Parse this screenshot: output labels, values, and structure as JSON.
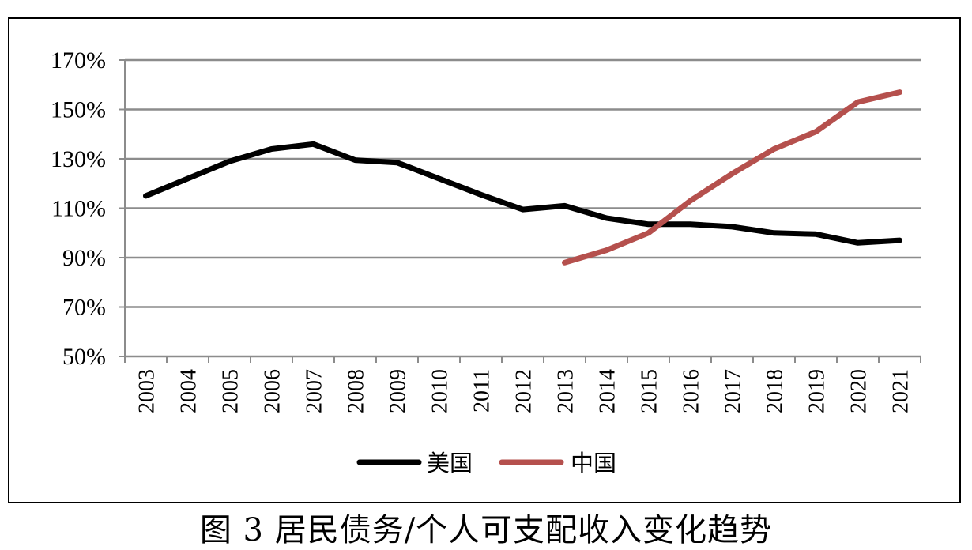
{
  "caption": "图 3 居民债务/个人可支配收入变化趋势",
  "chart_data": {
    "type": "line",
    "title": "",
    "xlabel": "",
    "ylabel": "",
    "x": [
      "2003",
      "2004",
      "2005",
      "2006",
      "2007",
      "2008",
      "2009",
      "2010",
      "2011",
      "2012",
      "2013",
      "2014",
      "2015",
      "2016",
      "2017",
      "2018",
      "2019",
      "2020",
      "2021"
    ],
    "ylim": [
      50,
      170
    ],
    "yticks": [
      50,
      70,
      90,
      110,
      130,
      150,
      170
    ],
    "ytick_labels": [
      "50%",
      "70%",
      "90%",
      "110%",
      "130%",
      "150%",
      "170%"
    ],
    "grid": true,
    "legend_position": "bottom",
    "series": [
      {
        "name": "美国",
        "color": "#000000",
        "values": [
          115,
          122,
          129,
          134,
          136,
          129.5,
          128.5,
          122,
          115.5,
          109.5,
          111,
          106,
          103.5,
          103.5,
          102.5,
          100,
          99.5,
          96,
          97
        ]
      },
      {
        "name": "中国",
        "color": "#B5504D",
        "values": [
          null,
          null,
          null,
          null,
          null,
          null,
          null,
          null,
          null,
          null,
          88,
          93,
          100,
          113,
          124,
          134,
          141,
          153,
          157
        ]
      }
    ]
  }
}
